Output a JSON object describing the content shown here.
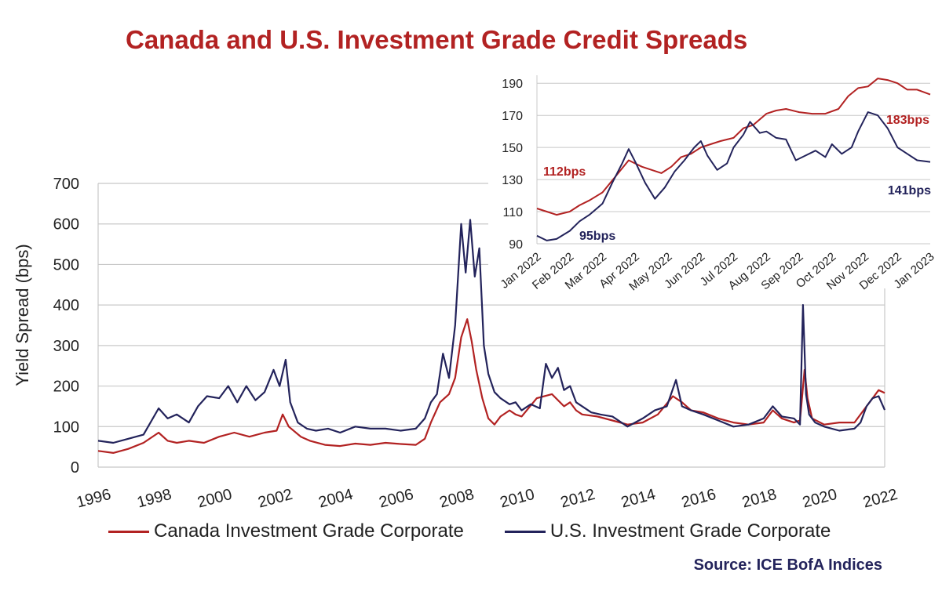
{
  "title": "Canada and U.S. Investment Grade Credit Spreads",
  "source": "Source: ICE BofA Indices",
  "legend": [
    {
      "label": "Canada Investment Grade Corporate",
      "color": "#b22222"
    },
    {
      "label": "U.S. Investment Grade Corporate",
      "color": "#23235b"
    }
  ],
  "chart_data": [
    {
      "type": "line",
      "ylabel": "Yield Spread (bps)",
      "xlabel": "",
      "xlim": [
        1996,
        2022
      ],
      "ylim": [
        0,
        700
      ],
      "yticks": [
        0,
        100,
        200,
        300,
        400,
        500,
        600,
        700
      ],
      "xticks": [
        "1996",
        "1998",
        "2000",
        "2002",
        "2004",
        "2006",
        "2008",
        "2010",
        "2012",
        "2014",
        "2016",
        "2018",
        "2020",
        "2022"
      ],
      "grid": true,
      "series": [
        {
          "name": "Canada Investment Grade Corporate",
          "color": "#b22222",
          "x": [
            1996.0,
            1996.5,
            1997.0,
            1997.5,
            1998.0,
            1998.3,
            1998.6,
            1999.0,
            1999.5,
            2000.0,
            2000.5,
            2001.0,
            2001.5,
            2001.9,
            2002.1,
            2002.3,
            2002.7,
            2003.0,
            2003.5,
            2004.0,
            2004.5,
            2005.0,
            2005.5,
            2006.0,
            2006.5,
            2006.8,
            2007.0,
            2007.3,
            2007.6,
            2007.8,
            2008.0,
            2008.2,
            2008.35,
            2008.5,
            2008.7,
            2008.9,
            2009.1,
            2009.3,
            2009.6,
            2009.8,
            2010.0,
            2010.5,
            2011.0,
            2011.4,
            2011.6,
            2011.8,
            2012.0,
            2012.5,
            2013.0,
            2013.5,
            2014.0,
            2014.5,
            2015.0,
            2015.3,
            2015.6,
            2016.0,
            2016.5,
            2017.0,
            2017.5,
            2018.0,
            2018.3,
            2018.6,
            2019.0,
            2019.2,
            2019.35,
            2019.45,
            2019.6,
            2020.0,
            2020.5,
            2021.0,
            2021.3,
            2021.6,
            2021.8,
            2022.0
          ],
          "values": [
            40,
            35,
            45,
            60,
            85,
            65,
            60,
            65,
            60,
            75,
            85,
            75,
            85,
            90,
            130,
            100,
            75,
            65,
            55,
            52,
            58,
            55,
            60,
            57,
            55,
            70,
            110,
            160,
            180,
            220,
            320,
            365,
            310,
            240,
            170,
            120,
            105,
            125,
            140,
            130,
            125,
            170,
            180,
            150,
            160,
            140,
            130,
            125,
            115,
            105,
            110,
            130,
            175,
            160,
            140,
            135,
            120,
            110,
            105,
            110,
            140,
            120,
            110,
            115,
            240,
            170,
            120,
            105,
            110,
            110,
            140,
            170,
            190,
            183
          ]
        },
        {
          "name": "U.S. Investment Grade Corporate",
          "color": "#23235b",
          "x": [
            1996.0,
            1996.5,
            1997.0,
            1997.5,
            1998.0,
            1998.3,
            1998.6,
            1999.0,
            1999.3,
            1999.6,
            2000.0,
            2000.3,
            2000.6,
            2000.9,
            2001.2,
            2001.5,
            2001.8,
            2002.0,
            2002.2,
            2002.35,
            2002.6,
            2002.9,
            2003.2,
            2003.6,
            2004.0,
            2004.5,
            2005.0,
            2005.5,
            2006.0,
            2006.5,
            2006.8,
            2007.0,
            2007.2,
            2007.4,
            2007.6,
            2007.8,
            2008.0,
            2008.15,
            2008.3,
            2008.45,
            2008.6,
            2008.75,
            2008.9,
            2009.1,
            2009.3,
            2009.6,
            2009.8,
            2010.0,
            2010.3,
            2010.6,
            2010.8,
            2011.0,
            2011.2,
            2011.4,
            2011.6,
            2011.8,
            2012.0,
            2012.3,
            2012.6,
            2013.0,
            2013.5,
            2014.0,
            2014.4,
            2014.8,
            2015.1,
            2015.3,
            2015.6,
            2016.0,
            2016.5,
            2017.0,
            2017.5,
            2018.0,
            2018.3,
            2018.6,
            2019.0,
            2019.2,
            2019.3,
            2019.4,
            2019.5,
            2019.7,
            2020.0,
            2020.5,
            2021.0,
            2021.2,
            2021.4,
            2021.6,
            2021.8,
            2022.0
          ],
          "values": [
            65,
            60,
            70,
            80,
            145,
            120,
            130,
            110,
            150,
            175,
            170,
            200,
            160,
            200,
            165,
            185,
            240,
            200,
            265,
            160,
            110,
            95,
            90,
            95,
            85,
            100,
            95,
            95,
            90,
            95,
            120,
            160,
            180,
            280,
            220,
            350,
            600,
            480,
            610,
            470,
            540,
            300,
            230,
            185,
            170,
            155,
            160,
            140,
            155,
            145,
            255,
            220,
            245,
            190,
            200,
            160,
            150,
            135,
            130,
            125,
            100,
            120,
            140,
            150,
            215,
            150,
            140,
            130,
            115,
            100,
            105,
            120,
            150,
            125,
            120,
            105,
            400,
            180,
            130,
            110,
            100,
            90,
            95,
            110,
            150,
            170,
            175,
            141
          ]
        }
      ]
    },
    {
      "type": "line",
      "ylabel": "",
      "xlabel": "",
      "xticks": [
        "Jan 2022",
        "Feb 2022",
        "Mar 2022",
        "Apr 2022",
        "May 2022",
        "Jun 2022",
        "Jul 2022",
        "Aug 2022",
        "Sep 2022",
        "Oct 2022",
        "Nov 2022",
        "Dec 2022",
        "Jan 2023"
      ],
      "xlim": [
        0,
        12
      ],
      "ylim": [
        90,
        195
      ],
      "yticks": [
        90,
        110,
        130,
        150,
        170,
        190
      ],
      "grid": true,
      "annotations": [
        {
          "text": "112bps",
          "color": "#b22222"
        },
        {
          "text": "95bps",
          "color": "#23235b"
        },
        {
          "text": "183bps",
          "color": "#b22222"
        },
        {
          "text": "141bps",
          "color": "#23235b"
        }
      ],
      "series": [
        {
          "name": "Canada Investment Grade Corporate",
          "color": "#b22222",
          "x": [
            0,
            0.3,
            0.6,
            1.0,
            1.3,
            1.6,
            2.0,
            2.4,
            2.8,
            3.2,
            3.5,
            3.8,
            4.1,
            4.4,
            4.7,
            5.0,
            5.3,
            5.6,
            6.0,
            6.3,
            6.6,
            7.0,
            7.3,
            7.6,
            8.0,
            8.4,
            8.8,
            9.2,
            9.5,
            9.8,
            10.1,
            10.4,
            10.7,
            11.0,
            11.3,
            11.6,
            12.0
          ],
          "values": [
            112,
            110,
            108,
            110,
            114,
            117,
            122,
            132,
            142,
            138,
            136,
            134,
            138,
            144,
            146,
            150,
            152,
            154,
            156,
            162,
            164,
            171,
            173,
            174,
            172,
            171,
            171,
            174,
            182,
            187,
            188,
            193,
            192,
            190,
            186,
            186,
            183
          ]
        },
        {
          "name": "U.S. Investment Grade Corporate",
          "color": "#23235b",
          "x": [
            0,
            0.3,
            0.6,
            1.0,
            1.3,
            1.6,
            2.0,
            2.3,
            2.6,
            2.8,
            3.0,
            3.3,
            3.6,
            3.9,
            4.2,
            4.5,
            4.8,
            5.0,
            5.2,
            5.5,
            5.8,
            6.0,
            6.3,
            6.5,
            6.8,
            7.0,
            7.3,
            7.6,
            7.9,
            8.2,
            8.5,
            8.8,
            9.0,
            9.3,
            9.6,
            9.8,
            10.1,
            10.4,
            10.7,
            11.0,
            11.3,
            11.6,
            12.0
          ],
          "values": [
            95,
            92,
            93,
            98,
            104,
            108,
            115,
            128,
            140,
            149,
            141,
            128,
            118,
            125,
            135,
            142,
            150,
            154,
            145,
            136,
            140,
            150,
            158,
            166,
            159,
            160,
            156,
            155,
            142,
            145,
            148,
            144,
            152,
            146,
            150,
            160,
            172,
            170,
            162,
            150,
            146,
            142,
            141
          ]
        }
      ]
    }
  ]
}
